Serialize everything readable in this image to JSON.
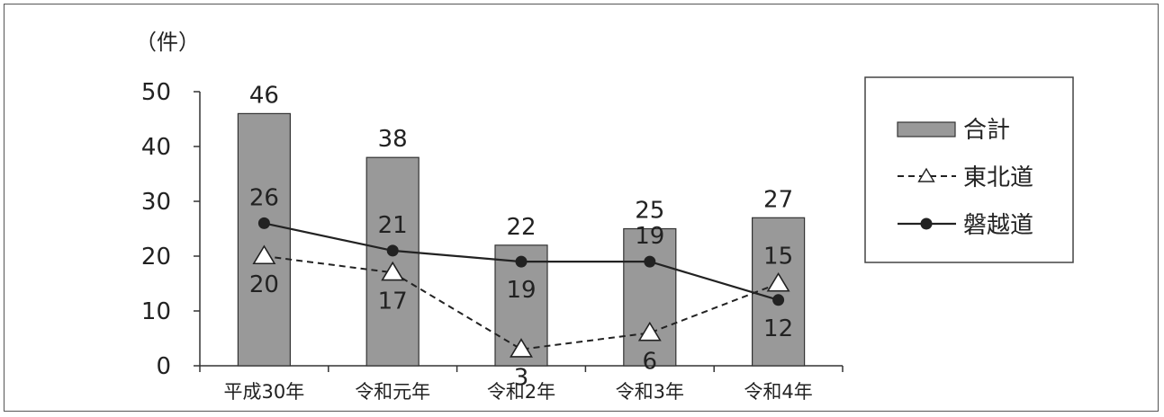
{
  "chart_data": {
    "type": "bar",
    "unit_label": "（件）",
    "categories": [
      "平成30年",
      "令和元年",
      "令和2年",
      "令和3年",
      "令和4年"
    ],
    "ylim": [
      0,
      50
    ],
    "yticks": [
      0,
      10,
      20,
      30,
      40,
      50
    ],
    "grid": false,
    "legend_position": "right",
    "series": [
      {
        "name": "合計",
        "kind": "bar",
        "values": [
          46,
          38,
          22,
          25,
          27
        ],
        "color": "#999999"
      },
      {
        "name": "東北道",
        "kind": "line-dashed",
        "marker": "triangle-open",
        "values": [
          20,
          17,
          3,
          6,
          15
        ],
        "color": "#222222"
      },
      {
        "name": "磐越道",
        "kind": "line-solid",
        "marker": "circle-filled",
        "values": [
          26,
          21,
          19,
          19,
          12
        ],
        "color": "#222222"
      }
    ]
  }
}
